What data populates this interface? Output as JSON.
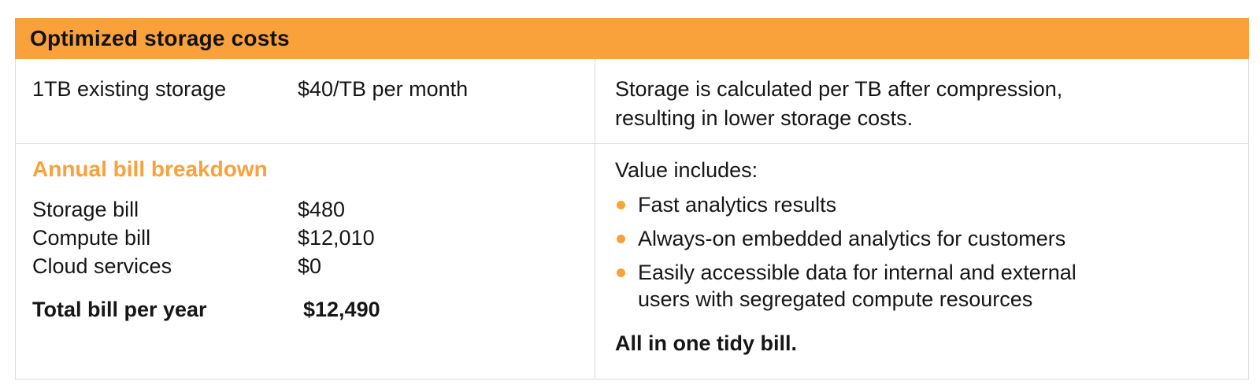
{
  "panel": {
    "title": "Optimized storage costs",
    "storage_row": {
      "label": "1TB existing storage",
      "price": "$40/TB per month",
      "note": "Storage is calculated per TB after compression, resulting in lower storage costs."
    },
    "breakdown": {
      "heading": "Annual bill breakdown",
      "items": [
        {
          "label": "Storage bill",
          "value": "$480"
        },
        {
          "label": "Compute bill",
          "value": "$12,010"
        },
        {
          "label": "Cloud services",
          "value": "$0"
        }
      ],
      "total": {
        "label": "Total bill per year",
        "value": "$12,490"
      }
    },
    "value_column": {
      "title": "Value includes:",
      "bullets": [
        "Fast analytics results",
        "Always-on embedded analytics for customers",
        "Easily accessible data for internal and external users with segregated compute resources"
      ],
      "closing": "All in one tidy bill."
    },
    "colors": {
      "accent_orange": "#F9A13B",
      "border_gray": "#DADAE0",
      "text": "#161616"
    }
  }
}
